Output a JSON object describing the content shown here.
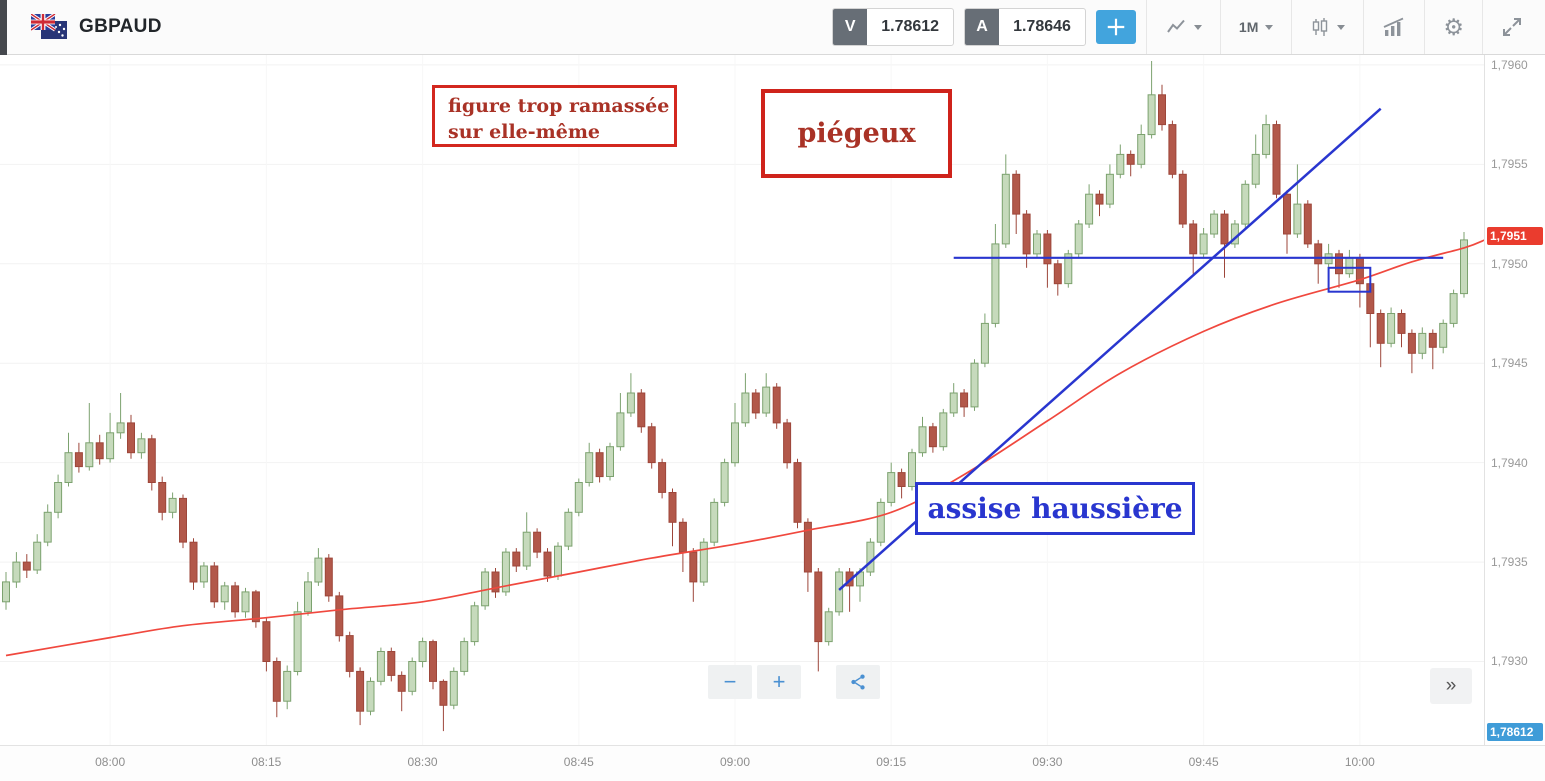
{
  "toolbar": {
    "symbol": "GBPAUD",
    "sell_label": "V",
    "sell_price": "1.78612",
    "buy_label": "A",
    "buy_price": "1.78646",
    "timeframe": "1M"
  },
  "annotations": {
    "note_compact": {
      "text": "figure trop ramassée\nsur elle-même"
    },
    "note_trap": {
      "text": "piégeux"
    },
    "note_bullish": {
      "text": "assise haussière"
    }
  },
  "chart_controls": {
    "zoom_out": "−",
    "zoom_in": "+",
    "collapse": "»"
  },
  "chart_data": {
    "type": "candlestick",
    "x_axis": {
      "start": "07:50",
      "end": "10:10",
      "minutes_per_candle": 1,
      "tick_labels": [
        "08:00",
        "08:15",
        "08:30",
        "08:45",
        "09:00",
        "09:15",
        "09:30",
        "09:45",
        "10:00"
      ]
    },
    "y_axis": {
      "min": 1.79258,
      "max": 1.79605,
      "ticks": [
        {
          "label": "1,7960",
          "value": 1.796
        },
        {
          "label": "1,7955",
          "value": 1.7955
        },
        {
          "label": "1,7950",
          "value": 1.795
        },
        {
          "label": "1,7945",
          "value": 1.7945
        },
        {
          "label": "1,7940",
          "value": 1.794
        },
        {
          "label": "1,7935",
          "value": 1.7935
        },
        {
          "label": "1,7930",
          "value": 1.793
        }
      ]
    },
    "price_label": {
      "text": "1,7951",
      "value": 1.79514
    },
    "bid_label": {
      "text": "1,78612"
    },
    "colors": {
      "up_fill": "#c6dabc",
      "up_stroke": "#7ca26f",
      "down_fill": "#b2584a",
      "down_stroke": "#9d463a",
      "ma": "#f0483e",
      "drawing": "#2936cf",
      "price_label_bg": "#ea3c2e",
      "bid_label_bg": "#3f9cd8",
      "accent_blue": "#42a4dd"
    },
    "ma_line": {
      "name": "moving-average",
      "points": [
        [
          "07:50",
          1.79303
        ],
        [
          "08:00",
          1.79312
        ],
        [
          "08:07",
          1.79318
        ],
        [
          "08:15",
          1.79322
        ],
        [
          "08:22",
          1.79326
        ],
        [
          "08:30",
          1.7933
        ],
        [
          "08:37",
          1.79337
        ],
        [
          "08:45",
          1.79345
        ],
        [
          "08:52",
          1.79352
        ],
        [
          "09:00",
          1.79359
        ],
        [
          "09:07",
          1.79366
        ],
        [
          "09:15",
          1.79375
        ],
        [
          "09:22",
          1.79394
        ],
        [
          "09:30",
          1.79421
        ],
        [
          "09:37",
          1.79445
        ],
        [
          "09:45",
          1.79466
        ],
        [
          "09:52",
          1.7948
        ],
        [
          "10:00",
          1.79492
        ],
        [
          "10:05",
          1.79501
        ],
        [
          "10:10",
          1.79508
        ],
        [
          "10:12",
          1.79512
        ]
      ]
    },
    "drawings": {
      "trendline": {
        "x1": "09:10",
        "p1": 1.79336,
        "x2": "10:02",
        "p2": 1.79578
      },
      "hline": {
        "x1": "09:21",
        "x2": "10:08",
        "p": 1.79503
      },
      "rect": {
        "x1": "09:57",
        "p1": 1.79498,
        "x2": "10:01",
        "p2": 1.79486
      }
    },
    "candles": [
      [
        "07:50",
        1.7933,
        1.79345,
        1.79326,
        1.7934
      ],
      [
        "07:51",
        1.7934,
        1.79355,
        1.79337,
        1.7935
      ],
      [
        "07:52",
        1.7935,
        1.79354,
        1.79342,
        1.79346
      ],
      [
        "07:53",
        1.79346,
        1.79364,
        1.79344,
        1.7936
      ],
      [
        "07:54",
        1.7936,
        1.79379,
        1.79358,
        1.79375
      ],
      [
        "07:55",
        1.79375,
        1.79394,
        1.79372,
        1.7939
      ],
      [
        "07:56",
        1.7939,
        1.79415,
        1.79388,
        1.79405
      ],
      [
        "07:57",
        1.79405,
        1.7941,
        1.79395,
        1.79398
      ],
      [
        "07:58",
        1.79398,
        1.7943,
        1.79396,
        1.7941
      ],
      [
        "07:59",
        1.7941,
        1.79414,
        1.79399,
        1.79402
      ],
      [
        "08:00",
        1.79402,
        1.79425,
        1.794,
        1.79415
      ],
      [
        "08:01",
        1.79415,
        1.79435,
        1.79412,
        1.7942
      ],
      [
        "08:02",
        1.7942,
        1.79424,
        1.79402,
        1.79405
      ],
      [
        "08:03",
        1.79405,
        1.79415,
        1.79402,
        1.79412
      ],
      [
        "08:04",
        1.79412,
        1.79414,
        1.79386,
        1.7939
      ],
      [
        "08:05",
        1.7939,
        1.79393,
        1.79371,
        1.79375
      ],
      [
        "08:06",
        1.79375,
        1.79385,
        1.79372,
        1.79382
      ],
      [
        "08:07",
        1.79382,
        1.79384,
        1.79357,
        1.7936
      ],
      [
        "08:08",
        1.7936,
        1.79362,
        1.79336,
        1.7934
      ],
      [
        "08:09",
        1.7934,
        1.7935,
        1.79337,
        1.79348
      ],
      [
        "08:10",
        1.79348,
        1.7935,
        1.79327,
        1.7933
      ],
      [
        "08:11",
        1.7933,
        1.7934,
        1.79326,
        1.79338
      ],
      [
        "08:12",
        1.79338,
        1.7934,
        1.79322,
        1.79325
      ],
      [
        "08:13",
        1.79325,
        1.79337,
        1.79322,
        1.79335
      ],
      [
        "08:14",
        1.79335,
        1.79336,
        1.79317,
        1.7932
      ],
      [
        "08:15",
        1.7932,
        1.79322,
        1.79295,
        1.793
      ],
      [
        "08:16",
        1.793,
        1.79302,
        1.79272,
        1.7928
      ],
      [
        "08:17",
        1.7928,
        1.79298,
        1.79276,
        1.79295
      ],
      [
        "08:18",
        1.79295,
        1.7933,
        1.79293,
        1.79325
      ],
      [
        "08:19",
        1.79325,
        1.79345,
        1.79323,
        1.7934
      ],
      [
        "08:20",
        1.7934,
        1.79357,
        1.79338,
        1.79352
      ],
      [
        "08:21",
        1.79352,
        1.79354,
        1.7933,
        1.79333
      ],
      [
        "08:22",
        1.79333,
        1.79335,
        1.7931,
        1.79313
      ],
      [
        "08:23",
        1.79313,
        1.79315,
        1.79292,
        1.79295
      ],
      [
        "08:24",
        1.79295,
        1.79297,
        1.79268,
        1.79275
      ],
      [
        "08:25",
        1.79275,
        1.79292,
        1.79273,
        1.7929
      ],
      [
        "08:26",
        1.7929,
        1.79307,
        1.79288,
        1.79305
      ],
      [
        "08:27",
        1.79305,
        1.79307,
        1.7929,
        1.79293
      ],
      [
        "08:28",
        1.79293,
        1.79295,
        1.79275,
        1.79285
      ],
      [
        "08:29",
        1.79285,
        1.79302,
        1.79283,
        1.793
      ],
      [
        "08:30",
        1.793,
        1.79312,
        1.79297,
        1.7931
      ],
      [
        "08:31",
        1.7931,
        1.79311,
        1.79286,
        1.7929
      ],
      [
        "08:32",
        1.7929,
        1.79291,
        1.79265,
        1.79278
      ],
      [
        "08:33",
        1.79278,
        1.79297,
        1.79276,
        1.79295
      ],
      [
        "08:34",
        1.79295,
        1.79312,
        1.79293,
        1.7931
      ],
      [
        "08:35",
        1.7931,
        1.7933,
        1.79308,
        1.79328
      ],
      [
        "08:36",
        1.79328,
        1.79347,
        1.79326,
        1.79345
      ],
      [
        "08:37",
        1.79345,
        1.79347,
        1.79332,
        1.79335
      ],
      [
        "08:38",
        1.79335,
        1.79357,
        1.79333,
        1.79355
      ],
      [
        "08:39",
        1.79355,
        1.79357,
        1.79345,
        1.79348
      ],
      [
        "08:40",
        1.79348,
        1.79375,
        1.79346,
        1.79365
      ],
      [
        "08:41",
        1.79365,
        1.79367,
        1.79352,
        1.79355
      ],
      [
        "08:42",
        1.79355,
        1.79357,
        1.7934,
        1.79343
      ],
      [
        "08:43",
        1.79343,
        1.7936,
        1.79341,
        1.79358
      ],
      [
        "08:44",
        1.79358,
        1.79377,
        1.79356,
        1.79375
      ],
      [
        "08:45",
        1.79375,
        1.79392,
        1.79373,
        1.7939
      ],
      [
        "08:46",
        1.7939,
        1.7941,
        1.79388,
        1.79405
      ],
      [
        "08:47",
        1.79405,
        1.79407,
        1.7939,
        1.79393
      ],
      [
        "08:48",
        1.79393,
        1.7941,
        1.79391,
        1.79408
      ],
      [
        "08:49",
        1.79408,
        1.79435,
        1.79406,
        1.79425
      ],
      [
        "08:50",
        1.79425,
        1.79445,
        1.79423,
        1.79435
      ],
      [
        "08:51",
        1.79435,
        1.79437,
        1.79415,
        1.79418
      ],
      [
        "08:52",
        1.79418,
        1.7942,
        1.79397,
        1.794
      ],
      [
        "08:53",
        1.794,
        1.79402,
        1.79382,
        1.79385
      ],
      [
        "08:54",
        1.79385,
        1.79387,
        1.79358,
        1.7937
      ],
      [
        "08:55",
        1.7937,
        1.79372,
        1.79345,
        1.79355
      ],
      [
        "08:56",
        1.79355,
        1.79357,
        1.7933,
        1.7934
      ],
      [
        "08:57",
        1.7934,
        1.79362,
        1.79338,
        1.7936
      ],
      [
        "08:58",
        1.7936,
        1.79382,
        1.79358,
        1.7938
      ],
      [
        "08:59",
        1.7938,
        1.79402,
        1.79378,
        1.794
      ],
      [
        "09:00",
        1.794,
        1.7943,
        1.79398,
        1.7942
      ],
      [
        "09:01",
        1.7942,
        1.79445,
        1.79418,
        1.79435
      ],
      [
        "09:02",
        1.79435,
        1.79437,
        1.79422,
        1.79425
      ],
      [
        "09:03",
        1.79425,
        1.79445,
        1.79423,
        1.79438
      ],
      [
        "09:04",
        1.79438,
        1.7944,
        1.79417,
        1.7942
      ],
      [
        "09:05",
        1.7942,
        1.79422,
        1.79397,
        1.794
      ],
      [
        "09:06",
        1.794,
        1.79402,
        1.79367,
        1.7937
      ],
      [
        "09:07",
        1.7937,
        1.79372,
        1.79335,
        1.79345
      ],
      [
        "09:08",
        1.79345,
        1.79347,
        1.79295,
        1.7931
      ],
      [
        "09:09",
        1.7931,
        1.79327,
        1.79308,
        1.79325
      ],
      [
        "09:10",
        1.79325,
        1.79347,
        1.79323,
        1.79345
      ],
      [
        "09:11",
        1.79345,
        1.79347,
        1.79325,
        1.79338
      ],
      [
        "09:12",
        1.79338,
        1.79347,
        1.7933,
        1.79345
      ],
      [
        "09:13",
        1.79345,
        1.79362,
        1.79343,
        1.7936
      ],
      [
        "09:14",
        1.7936,
        1.79382,
        1.79358,
        1.7938
      ],
      [
        "09:15",
        1.7938,
        1.794,
        1.79378,
        1.79395
      ],
      [
        "09:16",
        1.79395,
        1.79397,
        1.79382,
        1.79388
      ],
      [
        "09:17",
        1.79388,
        1.79407,
        1.79386,
        1.79405
      ],
      [
        "09:18",
        1.79405,
        1.79423,
        1.79403,
        1.79418
      ],
      [
        "09:19",
        1.79418,
        1.7942,
        1.79405,
        1.79408
      ],
      [
        "09:20",
        1.79408,
        1.79427,
        1.79406,
        1.79425
      ],
      [
        "09:21",
        1.79425,
        1.7944,
        1.79423,
        1.79435
      ],
      [
        "09:22",
        1.79435,
        1.79437,
        1.79423,
        1.79428
      ],
      [
        "09:23",
        1.79428,
        1.79452,
        1.79426,
        1.7945
      ],
      [
        "09:24",
        1.7945,
        1.79475,
        1.79448,
        1.7947
      ],
      [
        "09:25",
        1.7947,
        1.7952,
        1.79468,
        1.7951
      ],
      [
        "09:26",
        1.7951,
        1.79555,
        1.79508,
        1.79545
      ],
      [
        "09:27",
        1.79545,
        1.79547,
        1.79515,
        1.79525
      ],
      [
        "09:28",
        1.79525,
        1.79527,
        1.79498,
        1.79505
      ],
      [
        "09:29",
        1.79505,
        1.79517,
        1.79503,
        1.79515
      ],
      [
        "09:30",
        1.79515,
        1.79517,
        1.79488,
        1.795
      ],
      [
        "09:31",
        1.795,
        1.79502,
        1.79484,
        1.7949
      ],
      [
        "09:32",
        1.7949,
        1.79507,
        1.79488,
        1.79505
      ],
      [
        "09:33",
        1.79505,
        1.79522,
        1.79503,
        1.7952
      ],
      [
        "09:34",
        1.7952,
        1.7954,
        1.79518,
        1.79535
      ],
      [
        "09:35",
        1.79535,
        1.79537,
        1.79524,
        1.7953
      ],
      [
        "09:36",
        1.7953,
        1.7955,
        1.79528,
        1.79545
      ],
      [
        "09:37",
        1.79545,
        1.7956,
        1.79543,
        1.79555
      ],
      [
        "09:38",
        1.79555,
        1.79557,
        1.79544,
        1.7955
      ],
      [
        "09:39",
        1.7955,
        1.7957,
        1.79548,
        1.79565
      ],
      [
        "09:40",
        1.79565,
        1.79602,
        1.79563,
        1.79585
      ],
      [
        "09:41",
        1.79585,
        1.7959,
        1.79567,
        1.7957
      ],
      [
        "09:42",
        1.7957,
        1.79572,
        1.79543,
        1.79545
      ],
      [
        "09:43",
        1.79545,
        1.79547,
        1.79518,
        1.7952
      ],
      [
        "09:44",
        1.7952,
        1.79522,
        1.79495,
        1.79505
      ],
      [
        "09:45",
        1.79505,
        1.79518,
        1.79503,
        1.79515
      ],
      [
        "09:46",
        1.79515,
        1.79527,
        1.79513,
        1.79525
      ],
      [
        "09:47",
        1.79525,
        1.79527,
        1.79493,
        1.7951
      ],
      [
        "09:48",
        1.7951,
        1.79522,
        1.79508,
        1.7952
      ],
      [
        "09:49",
        1.7952,
        1.79542,
        1.79518,
        1.7954
      ],
      [
        "09:50",
        1.7954,
        1.79565,
        1.79538,
        1.79555
      ],
      [
        "09:51",
        1.79555,
        1.79575,
        1.79553,
        1.7957
      ],
      [
        "09:52",
        1.7957,
        1.79572,
        1.79533,
        1.79535
      ],
      [
        "09:53",
        1.79535,
        1.79537,
        1.79505,
        1.79515
      ],
      [
        "09:54",
        1.79515,
        1.7955,
        1.79513,
        1.7953
      ],
      [
        "09:55",
        1.7953,
        1.79532,
        1.79508,
        1.7951
      ],
      [
        "09:56",
        1.7951,
        1.79512,
        1.7949,
        1.795
      ],
      [
        "09:57",
        1.795,
        1.7951,
        1.79495,
        1.79505
      ],
      [
        "09:58",
        1.79505,
        1.79507,
        1.79488,
        1.79495
      ],
      [
        "09:59",
        1.79495,
        1.79507,
        1.79493,
        1.79503
      ],
      [
        "10:00",
        1.79503,
        1.79505,
        1.79478,
        1.7949
      ],
      [
        "10:01",
        1.7949,
        1.79492,
        1.79458,
        1.79475
      ],
      [
        "10:02",
        1.79475,
        1.79477,
        1.79448,
        1.7946
      ],
      [
        "10:03",
        1.7946,
        1.79478,
        1.79458,
        1.79475
      ],
      [
        "10:04",
        1.79475,
        1.79477,
        1.79458,
        1.79465
      ],
      [
        "10:05",
        1.79465,
        1.79467,
        1.79445,
        1.79455
      ],
      [
        "10:06",
        1.79455,
        1.79468,
        1.79452,
        1.79465
      ],
      [
        "10:07",
        1.79465,
        1.79467,
        1.79447,
        1.79458
      ],
      [
        "10:08",
        1.79458,
        1.79472,
        1.79455,
        1.7947
      ],
      [
        "10:09",
        1.7947,
        1.79487,
        1.79468,
        1.79485
      ],
      [
        "10:10",
        1.79485,
        1.79516,
        1.79483,
        1.79512
      ]
    ]
  }
}
